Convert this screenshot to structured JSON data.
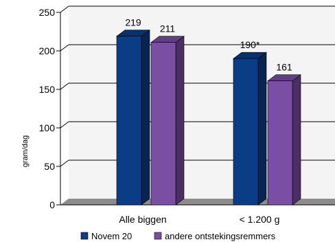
{
  "chart_data": {
    "type": "bar",
    "title": "",
    "xlabel": "",
    "ylabel": "gram/dag",
    "ylim": [
      0,
      250
    ],
    "yticks": [
      0,
      50,
      100,
      150,
      200,
      250
    ],
    "categories": [
      "Alle biggen",
      "< 1.200 g"
    ],
    "series": [
      {
        "name": "Novem 20",
        "values": [
          219,
          190
        ],
        "labels": [
          "219",
          "190*"
        ],
        "color": "#0b3d86"
      },
      {
        "name": "andere ontstekingsremmers",
        "values": [
          211,
          161
        ],
        "labels": [
          "211",
          "161"
        ],
        "color": "#7a4fa3"
      }
    ],
    "grid": true,
    "legend": "bottom",
    "style": "3d"
  }
}
